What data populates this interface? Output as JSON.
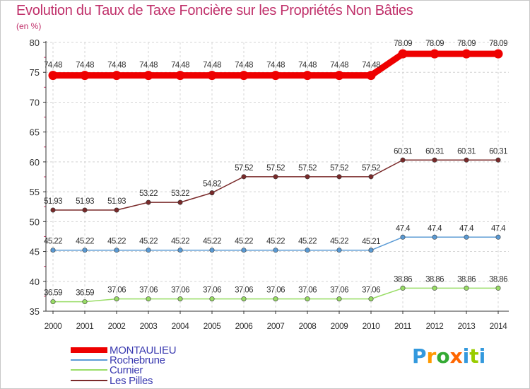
{
  "chart_data": {
    "type": "line",
    "title": "Evolution du Taux de Taxe Foncière sur les Propriétés Non Bâties",
    "unit_label": "(en %)",
    "x": [
      "2000",
      "2001",
      "2002",
      "2003",
      "2004",
      "2005",
      "2006",
      "2007",
      "2008",
      "2009",
      "2010",
      "2011",
      "2012",
      "2013",
      "2014"
    ],
    "ylim": [
      35,
      80
    ],
    "yticks": [
      "35",
      "40",
      "45",
      "50",
      "55",
      "60",
      "65",
      "70",
      "75",
      "80"
    ],
    "grid": true,
    "legend_position": "bottom-left",
    "series": [
      {
        "name": "MONTAULIEU",
        "color": "#ee0000",
        "values": [
          74.48,
          74.48,
          74.48,
          74.48,
          74.48,
          74.48,
          74.48,
          74.48,
          74.48,
          74.48,
          74.48,
          78.09,
          78.09,
          78.09,
          78.09
        ],
        "labels": [
          "74.48",
          "74.48",
          "74.48",
          "74.48",
          "74.48",
          "74.48",
          "74.48",
          "74.48",
          "74.48",
          "74.48",
          "74.48",
          "78.09",
          "78.09",
          "78.09",
          "78.09"
        ]
      },
      {
        "name": "Rochebrune",
        "color": "#5b9bd5",
        "values": [
          45.22,
          45.22,
          45.22,
          45.22,
          45.22,
          45.22,
          45.22,
          45.22,
          45.22,
          45.22,
          45.21,
          47.4,
          47.4,
          47.4,
          47.4
        ],
        "labels": [
          "45.22",
          "45.22",
          "45.22",
          "45.22",
          "45.22",
          "45.22",
          "45.22",
          "45.22",
          "45.22",
          "45.22",
          "45.21",
          "47.4",
          "47.4",
          "47.4",
          "47.4"
        ]
      },
      {
        "name": "Curnier",
        "color": "#99dd66",
        "values": [
          36.59,
          36.59,
          37.06,
          37.06,
          37.06,
          37.06,
          37.06,
          37.06,
          37.06,
          37.06,
          37.06,
          38.86,
          38.86,
          38.86,
          38.86
        ],
        "labels": [
          "36.59",
          "36.59",
          "37.06",
          "37.06",
          "37.06",
          "37.06",
          "37.06",
          "37.06",
          "37.06",
          "37.06",
          "37.06",
          "38.86",
          "38.86",
          "38.86",
          "38.86"
        ]
      },
      {
        "name": "Les Pilles",
        "color": "#7a2a2a",
        "values": [
          51.93,
          51.93,
          51.93,
          53.22,
          53.22,
          54.82,
          57.52,
          57.52,
          57.52,
          57.52,
          57.52,
          60.31,
          60.31,
          60.31,
          60.31
        ],
        "labels": [
          "51.93",
          "51.93",
          "51.93",
          "53.22",
          "53.22",
          "54.82",
          "57.52",
          "57.52",
          "57.52",
          "57.52",
          "57.52",
          "60.31",
          "60.31",
          "60.31",
          "60.31"
        ]
      }
    ]
  },
  "legend": {
    "items": [
      {
        "label": "MONTAULIEU",
        "color": "#ee0000"
      },
      {
        "label": "Rochebrune",
        "color": "#5b9bd5"
      },
      {
        "label": "Curnier",
        "color": "#99dd66"
      },
      {
        "label": "Les Pilles",
        "color": "#7a2a2a"
      }
    ]
  },
  "logo": {
    "letters": [
      "P",
      "r",
      "o",
      "x",
      "i",
      "t",
      "i"
    ],
    "colors": [
      "#3399dd",
      "#ff9900",
      "#33aa33",
      "#ff6600",
      "#3399dd",
      "#99cc00",
      "#3399dd"
    ]
  }
}
